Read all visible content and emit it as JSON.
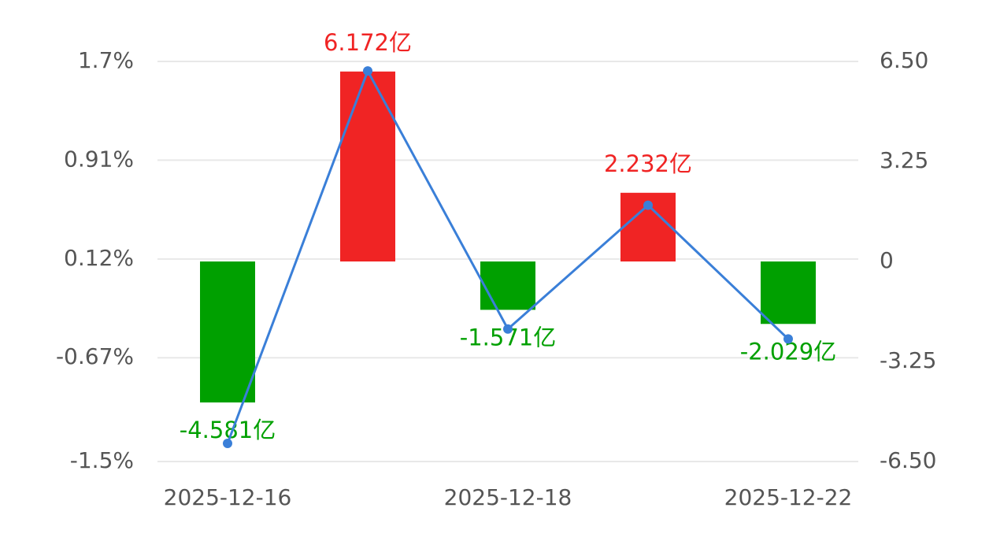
{
  "chart_data": {
    "type": "combo",
    "categories": [
      "2025-12-16",
      null,
      "2025-12-18",
      null,
      "2025-12-22"
    ],
    "series": [
      {
        "type": "bar",
        "axis": "y2",
        "positive_color": "#f02424",
        "negative_color": "#00a000",
        "values": [
          -4.581,
          6.172,
          -1.571,
          2.232,
          -2.029
        ],
        "value_labels": [
          "-4.581亿",
          "6.172亿",
          "-1.571亿",
          "2.232亿",
          "-2.029亿"
        ]
      },
      {
        "type": "line",
        "color": "#3a7fd8",
        "values": [
          -1.355,
          1.624,
          -0.44,
          0.55,
          -0.52
        ]
      }
    ],
    "ylim": [
      -1.5,
      1.7
    ],
    "yticks": [
      {
        "value": 1.7,
        "label": "1.7%"
      },
      {
        "value": 0.91,
        "label": "0.91%"
      },
      {
        "value": 0.12,
        "label": "0.12%"
      },
      {
        "value": -0.67,
        "label": "-0.67%"
      },
      {
        "value": -1.5,
        "label": "-1.5%"
      }
    ],
    "y2lim": [
      -6.5,
      6.5
    ],
    "y2ticks": [
      {
        "value": 6.5,
        "label": "6.50"
      },
      {
        "value": 3.25,
        "label": "3.25"
      },
      0,
      {
        "value": -3.25,
        "label": "-3.25"
      },
      {
        "value": -6.5,
        "label": "-6.50"
      }
    ],
    "grid": true
  }
}
